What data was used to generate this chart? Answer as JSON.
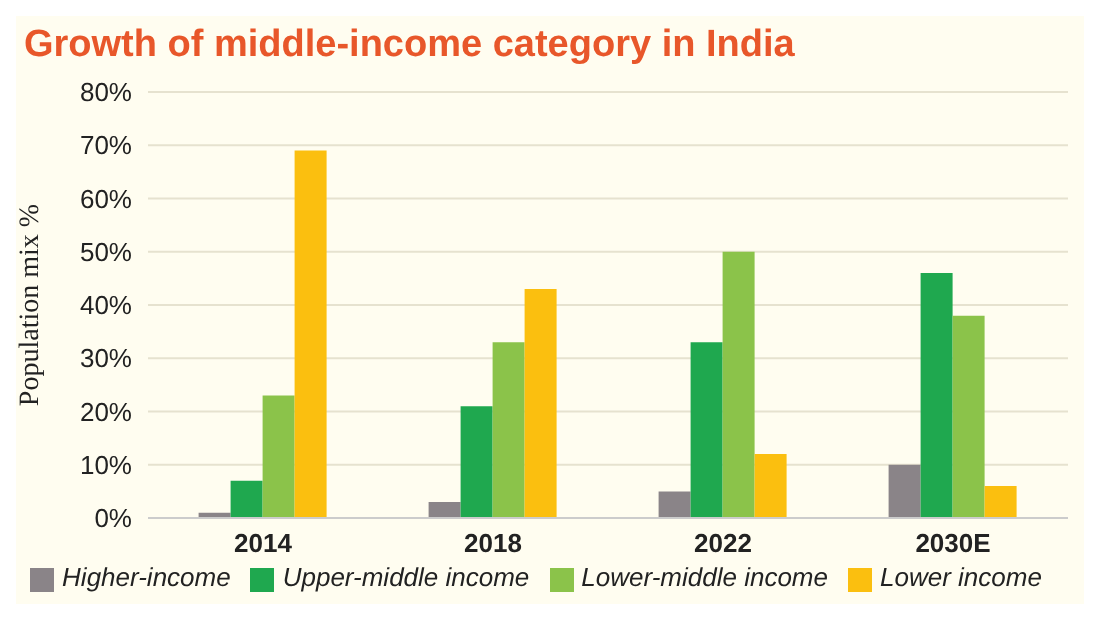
{
  "chart_data": {
    "type": "bar",
    "title": "Growth of middle-income category in India",
    "ylabel": "Population mix %",
    "categories": [
      "2014",
      "2018",
      "2022",
      "2030E"
    ],
    "series": [
      {
        "name": "Higher-income",
        "color": "#8a8488",
        "values": [
          1,
          3,
          5,
          10
        ]
      },
      {
        "name": "Upper-middle income",
        "color": "#1fa84f",
        "values": [
          7,
          21,
          33,
          46
        ]
      },
      {
        "name": "Lower-middle income",
        "color": "#8bc34a",
        "values": [
          23,
          33,
          50,
          38
        ]
      },
      {
        "name": "Lower income",
        "color": "#fbbf0f",
        "values": [
          69,
          43,
          12,
          6
        ]
      }
    ],
    "ylim": [
      0,
      80
    ],
    "yticks": [
      {
        "value": 0,
        "label": "0%"
      },
      {
        "value": 10,
        "label": "10%"
      },
      {
        "value": 20,
        "label": "20%"
      },
      {
        "value": 30,
        "label": "30%"
      },
      {
        "value": 40,
        "label": "40%"
      },
      {
        "value": 50,
        "label": "50%"
      },
      {
        "value": 60,
        "label": "60%"
      },
      {
        "value": 70,
        "label": "70%"
      },
      {
        "value": 80,
        "label": "80%"
      }
    ],
    "grid": "y",
    "legend": "bottom"
  }
}
